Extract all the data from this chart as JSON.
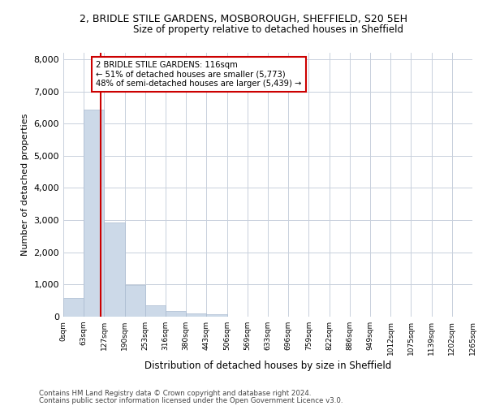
{
  "title_line1": "2, BRIDLE STILE GARDENS, MOSBOROUGH, SHEFFIELD, S20 5EH",
  "title_line2": "Size of property relative to detached houses in Sheffield",
  "xlabel": "Distribution of detached houses by size in Sheffield",
  "ylabel": "Number of detached properties",
  "bar_values": [
    570,
    6430,
    2920,
    980,
    360,
    165,
    95,
    70,
    0,
    0,
    0,
    0,
    0,
    0,
    0,
    0,
    0,
    0,
    0,
    0
  ],
  "bin_labels": [
    "0sqm",
    "63sqm",
    "127sqm",
    "190sqm",
    "253sqm",
    "316sqm",
    "380sqm",
    "443sqm",
    "506sqm",
    "569sqm",
    "633sqm",
    "696sqm",
    "759sqm",
    "822sqm",
    "886sqm",
    "949sqm",
    "1012sqm",
    "1075sqm",
    "1139sqm",
    "1202sqm",
    "1265sqm"
  ],
  "bar_color": "#ccd9e8",
  "bar_edge_color": "#aabbd0",
  "grid_color": "#c8d0dc",
  "property_sqm": 116,
  "bin_width": 63,
  "annotation_line1": "2 BRIDLE STILE GARDENS: 116sqm",
  "annotation_line2": "← 51% of detached houses are smaller (5,773)",
  "annotation_line3": "48% of semi-detached houses are larger (5,439) →",
  "vline_color": "#cc0000",
  "box_edge_color": "#cc0000",
  "footer_line1": "Contains HM Land Registry data © Crown copyright and database right 2024.",
  "footer_line2": "Contains public sector information licensed under the Open Government Licence v3.0.",
  "ylim": [
    0,
    8200
  ],
  "yticks": [
    0,
    1000,
    2000,
    3000,
    4000,
    5000,
    6000,
    7000,
    8000
  ],
  "num_bins": 20
}
